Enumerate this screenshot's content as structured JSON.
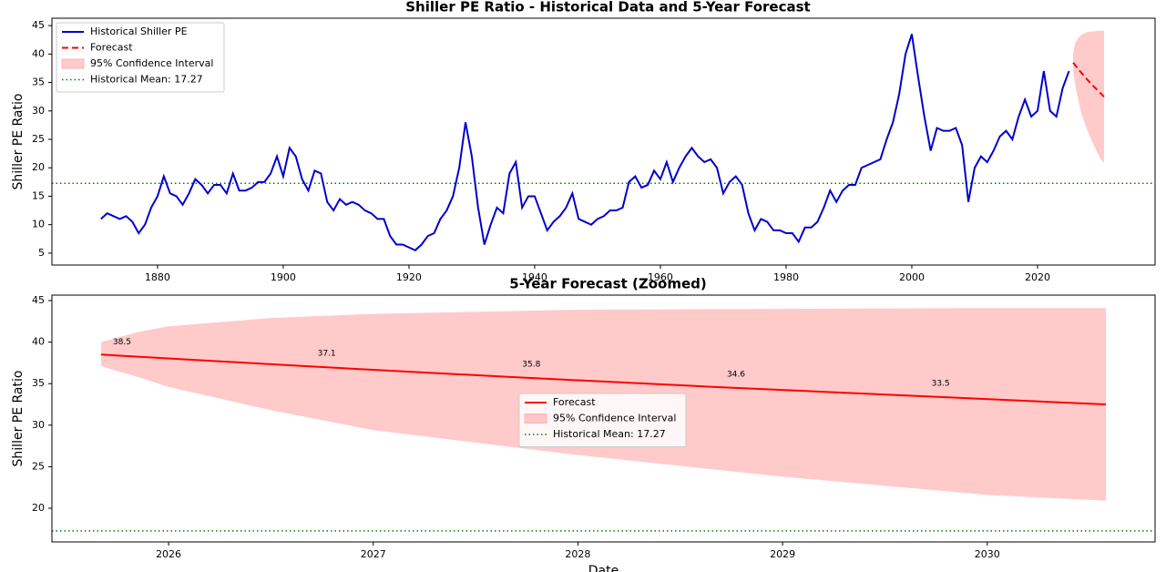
{
  "chart_data": [
    {
      "type": "line",
      "title": "Shiller PE Ratio - Historical Data and 5-Year Forecast",
      "ylabel": "Shiller PE Ratio",
      "xlim": [
        1863.2,
        2038.7
      ],
      "ylim": [
        2.9,
        46.3
      ],
      "xticks": [
        1880,
        1900,
        1920,
        1940,
        1960,
        1980,
        2000,
        2020
      ],
      "yticks": [
        5,
        10,
        15,
        20,
        25,
        30,
        35,
        40,
        45
      ],
      "legend": "upper left",
      "series": [
        {
          "name": "Historical Shiller PE",
          "color": "#0000cc",
          "dashed": false,
          "x": [
            1871,
            1872,
            1873,
            1874,
            1875,
            1876,
            1877,
            1878,
            1879,
            1880,
            1881,
            1882,
            1883,
            1884,
            1885,
            1886,
            1887,
            1888,
            1889,
            1890,
            1891,
            1892,
            1893,
            1894,
            1895,
            1896,
            1897,
            1898,
            1899,
            1900,
            1901,
            1902,
            1903,
            1904,
            1905,
            1906,
            1907,
            1908,
            1909,
            1910,
            1911,
            1912,
            1913,
            1914,
            1915,
            1916,
            1917,
            1918,
            1919,
            1920,
            1921,
            1922,
            1923,
            1924,
            1925,
            1926,
            1927,
            1928,
            1929,
            1930,
            1931,
            1932,
            1933,
            1934,
            1935,
            1936,
            1937,
            1938,
            1939,
            1940,
            1941,
            1942,
            1943,
            1944,
            1945,
            1946,
            1947,
            1948,
            1949,
            1950,
            1951,
            1952,
            1953,
            1954,
            1955,
            1956,
            1957,
            1958,
            1959,
            1960,
            1961,
            1962,
            1963,
            1964,
            1965,
            1966,
            1967,
            1968,
            1969,
            1970,
            1971,
            1972,
            1973,
            1974,
            1975,
            1976,
            1977,
            1978,
            1979,
            1980,
            1981,
            1982,
            1983,
            1984,
            1985,
            1986,
            1987,
            1988,
            1989,
            1990,
            1991,
            1992,
            1993,
            1994,
            1995,
            1996,
            1997,
            1998,
            1999,
            2000,
            2001,
            2002,
            2003,
            2004,
            2005,
            2006,
            2007,
            2008,
            2009,
            2010,
            2011,
            2012,
            2013,
            2014,
            2015,
            2016,
            2017,
            2018,
            2019,
            2020,
            2021,
            2022,
            2023,
            2024,
            2025
          ],
          "values": [
            11,
            12,
            11.5,
            11,
            11.5,
            10.5,
            8.5,
            10,
            13,
            15,
            18.5,
            15.5,
            15,
            13.5,
            15.5,
            18,
            17,
            15.5,
            17,
            17,
            15.5,
            19,
            16,
            16,
            16.5,
            17.5,
            17.5,
            19,
            22,
            18.5,
            23.5,
            22,
            18,
            16,
            19.5,
            19,
            14,
            12.5,
            14.5,
            13.5,
            14,
            13.5,
            12.5,
            12,
            11,
            11,
            8,
            6.5,
            6.5,
            6,
            5.5,
            6.5,
            8,
            8.5,
            11,
            12.5,
            15,
            20,
            28,
            22,
            13,
            6.5,
            10,
            13,
            12,
            19,
            21,
            13,
            15,
            15,
            12,
            9,
            10.5,
            11.5,
            13,
            15.5,
            11,
            10.5,
            10,
            11,
            11.5,
            12.5,
            12.5,
            13,
            17.5,
            18.5,
            16.5,
            17,
            19.5,
            18,
            21,
            17.5,
            20,
            22,
            23.5,
            22,
            21,
            21.5,
            20,
            15.5,
            17.5,
            18.5,
            17,
            12,
            9,
            11,
            10.5,
            9,
            9,
            8.5,
            8.5,
            7,
            9.5,
            9.5,
            10.5,
            13,
            16,
            14,
            16,
            17,
            17,
            20,
            20.5,
            21,
            21.5,
            25,
            28,
            33,
            40,
            43.5,
            36,
            29,
            23,
            27,
            26.5,
            26.5,
            27,
            24,
            14,
            20,
            22,
            21,
            23,
            25.5,
            26.5,
            25,
            29,
            32,
            29,
            30,
            37,
            30,
            29,
            34,
            37
          ]
        },
        {
          "name": "Forecast",
          "color": "#ff0000",
          "dashed": true,
          "x": [
            2025.67,
            2026.67,
            2027.67,
            2028.67,
            2029.67,
            2030.58
          ],
          "values": [
            38.5,
            37.1,
            35.8,
            34.6,
            33.5,
            32.5
          ]
        }
      ],
      "band": {
        "name": "95% Confidence Interval",
        "color": "#ffb3b3",
        "x": [
          2025.67,
          2025.85,
          2026,
          2026.5,
          2027,
          2028,
          2029,
          2030,
          2030.58
        ],
        "lower": [
          37.1,
          35.8,
          34.6,
          31.8,
          29.4,
          26.4,
          23.8,
          21.6,
          20.9
        ],
        "upper": [
          40.0,
          41.2,
          41.9,
          42.9,
          43.4,
          43.9,
          44.0,
          44.1,
          44.1
        ]
      },
      "mean": {
        "value": 17.27,
        "label": "Historical Mean: 17.27",
        "color": "#008000"
      }
    },
    {
      "type": "line",
      "title": "5-Year Forecast (Zoomed)",
      "xlabel": "Date",
      "ylabel": "Shiller PE Ratio",
      "xlim": [
        2025.43,
        2030.82
      ],
      "ylim": [
        15.94,
        45.66
      ],
      "xticks": [
        2026,
        2027,
        2028,
        2029,
        2030
      ],
      "yticks": [
        20,
        25,
        30,
        35,
        40,
        45
      ],
      "legend": "center",
      "series": [
        {
          "name": "Forecast",
          "color": "#ff0000",
          "dashed": false,
          "x": [
            2025.67,
            2026.67,
            2027.67,
            2028.67,
            2029.67,
            2030.58
          ],
          "values": [
            38.5,
            37.1,
            35.8,
            34.6,
            33.5,
            32.5
          ]
        }
      ],
      "band": {
        "name": "95% Confidence Interval",
        "color": "#ffb3b3",
        "x": [
          2025.67,
          2025.85,
          2026,
          2026.5,
          2027,
          2028,
          2029,
          2030,
          2030.58
        ],
        "lower": [
          37.1,
          35.8,
          34.6,
          31.8,
          29.4,
          26.4,
          23.8,
          21.6,
          20.9
        ],
        "upper": [
          40.0,
          41.2,
          41.9,
          42.9,
          43.4,
          43.9,
          44.0,
          44.1,
          44.1
        ]
      },
      "mean": {
        "value": 17.27,
        "label": "Historical Mean: 17.27",
        "color": "#008000"
      },
      "annotations": [
        {
          "x": 2025.67,
          "value": 38.5
        },
        {
          "x": 2026.67,
          "value": 37.1
        },
        {
          "x": 2027.67,
          "value": 35.8
        },
        {
          "x": 2028.67,
          "value": 34.6
        },
        {
          "x": 2029.67,
          "value": 33.5
        }
      ]
    }
  ]
}
